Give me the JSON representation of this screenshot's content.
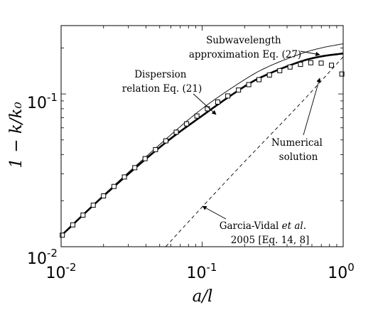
{
  "chart_data": {
    "type": "line",
    "x_scale": "log",
    "y_scale": "log",
    "xlim": [
      0.01,
      1
    ],
    "ylim": [
      0.01,
      0.28
    ],
    "grid": false,
    "legend": "none",
    "xlabel": "a/l",
    "ylabel": "1 − k/k₀",
    "x_ticks": [
      {
        "base": "10",
        "exp": "-2",
        "value": 0.01
      },
      {
        "base": "10",
        "exp": "-1",
        "value": 0.1
      },
      {
        "base": "10",
        "exp": "0",
        "value": 1
      }
    ],
    "y_ticks": [
      {
        "base": "10",
        "exp": "-2",
        "value": 0.01
      },
      {
        "base": "10",
        "exp": "-1",
        "value": 0.1
      }
    ],
    "series": [
      {
        "style": "thick-solid",
        "color": "#000000",
        "x": [
          0.01,
          0.02,
          0.05,
          0.1,
          0.2,
          0.3,
          0.5,
          0.7,
          1.0
        ],
        "y": [
          0.0118,
          0.0215,
          0.0447,
          0.072,
          0.112,
          0.136,
          0.163,
          0.176,
          0.184
        ]
      },
      {
        "style": "thin-solid",
        "color": "#000000",
        "x": [
          0.01,
          0.02,
          0.05,
          0.1,
          0.2,
          0.3,
          0.5,
          0.7,
          1.0
        ],
        "y": [
          0.0118,
          0.0218,
          0.0466,
          0.08,
          0.124,
          0.152,
          0.183,
          0.2,
          0.213
        ]
      },
      {
        "style": "dashed",
        "color": "#000000",
        "x": [
          0.048,
          0.1,
          0.2,
          0.5,
          1.0
        ],
        "y": [
          0.0087,
          0.0182,
          0.036,
          0.087,
          0.175
        ]
      },
      {
        "style": "markers-square",
        "color": "#000000",
        "x": [
          0.0102,
          0.0121,
          0.0143,
          0.0169,
          0.02,
          0.0237,
          0.0281,
          0.0333,
          0.0394,
          0.0467,
          0.0553,
          0.0655,
          0.0776,
          0.0918,
          0.109,
          0.129,
          0.152,
          0.181,
          0.214,
          0.253,
          0.3,
          0.355,
          0.42,
          0.498,
          0.589,
          0.698,
          0.826,
          0.978
        ],
        "y": [
          0.0119,
          0.0139,
          0.0161,
          0.0187,
          0.0215,
          0.0248,
          0.0286,
          0.0329,
          0.0377,
          0.0432,
          0.0493,
          0.0562,
          0.0637,
          0.0717,
          0.08,
          0.0885,
          0.097,
          0.106,
          0.115,
          0.124,
          0.133,
          0.142,
          0.15,
          0.156,
          0.16,
          0.159,
          0.154,
          0.135
        ]
      }
    ],
    "annotations": [
      {
        "lines": [
          "Subwavelength",
          "approximation Eq. (27)"
        ]
      },
      {
        "lines": [
          "Dispersion",
          "relation Eq. (21)"
        ]
      },
      {
        "lines": [
          "Numerical",
          "solution"
        ]
      },
      {
        "line1_pre": "Garcia-Vidal ",
        "line1_em": "et al.",
        "line2": "2005 [Eq. 14, 8]"
      }
    ]
  }
}
